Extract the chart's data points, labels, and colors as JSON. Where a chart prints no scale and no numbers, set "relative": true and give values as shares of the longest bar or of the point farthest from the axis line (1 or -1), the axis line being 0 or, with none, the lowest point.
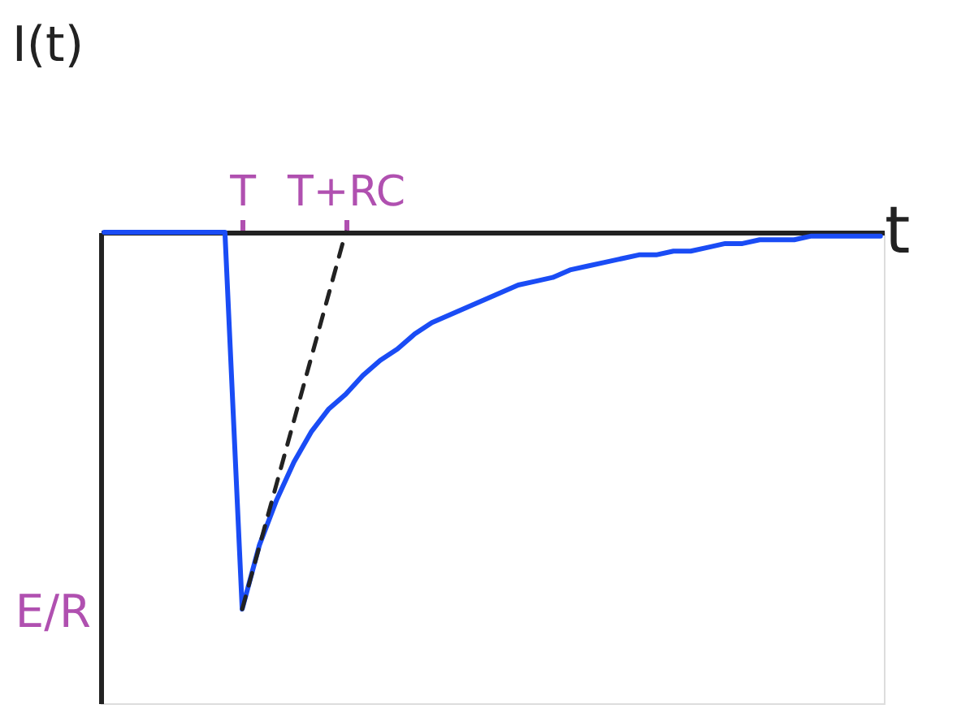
{
  "chart_data": {
    "type": "line",
    "relative": true,
    "xlabel": "t",
    "ylabel": "I(t)",
    "grid": false,
    "categories": [
      null,
      null,
      null,
      null,
      null,
      null,
      null,
      null,
      "T",
      null,
      null,
      null,
      null,
      null,
      "T+RC",
      null,
      null,
      null,
      null,
      null,
      null,
      null,
      null,
      null,
      null,
      null,
      null,
      null,
      null,
      null,
      null,
      null,
      null,
      null,
      null,
      null,
      null,
      null,
      null,
      null,
      null,
      null,
      null,
      null,
      null,
      null
    ],
    "series": [
      {
        "color": "#1a4cf5",
        "values": [
          0,
          0,
          0,
          0,
          0,
          0,
          0,
          0,
          -1,
          -0.83,
          -0.71,
          -0.61,
          -0.53,
          -0.47,
          -0.43,
          -0.38,
          -0.34,
          -0.31,
          -0.27,
          -0.24,
          -0.22,
          -0.2,
          -0.18,
          -0.16,
          -0.14,
          -0.13,
          -0.12,
          -0.1,
          -0.09,
          -0.08,
          -0.07,
          -0.06,
          -0.06,
          -0.05,
          -0.05,
          -0.04,
          -0.03,
          -0.03,
          -0.02,
          -0.02,
          -0.02,
          -0.01,
          -0.01,
          -0.01,
          -0.01,
          -0.01
        ]
      },
      {
        "color": "#222222",
        "line_style": "dashed",
        "values": [
          null,
          null,
          null,
          null,
          null,
          null,
          null,
          null,
          -1,
          null,
          null,
          null,
          null,
          null,
          0,
          null,
          null,
          null,
          null,
          null,
          null,
          null,
          null,
          null,
          null,
          null,
          null,
          null,
          null,
          null,
          null,
          null,
          null,
          null,
          null,
          null,
          null,
          null,
          null,
          null,
          null,
          null,
          null,
          null,
          null,
          null
        ]
      }
    ],
    "annotations": [
      "E/R"
    ]
  }
}
